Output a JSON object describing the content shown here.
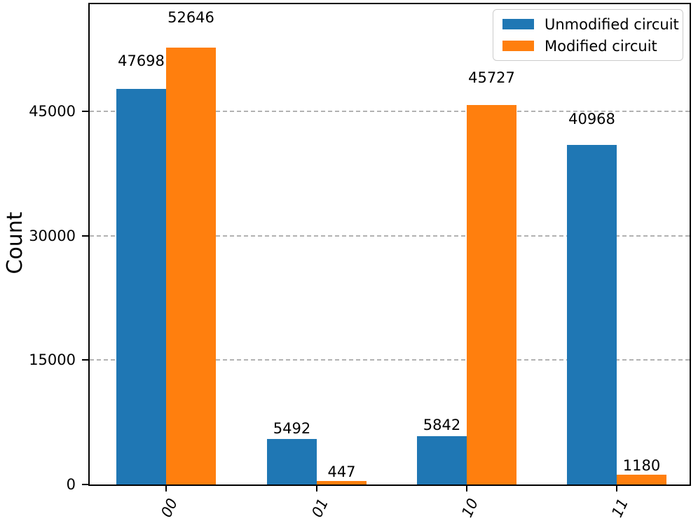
{
  "chart_data": {
    "type": "bar",
    "title": "",
    "categories": [
      "00",
      "01",
      "10",
      "11"
    ],
    "series": [
      {
        "name": "Unmodified circuit",
        "color": "#1f77b4",
        "values": [
          47698,
          5492,
          5842,
          40968
        ]
      },
      {
        "name": "Modified circuit",
        "color": "#ff7f0e",
        "values": [
          52646,
          447,
          45727,
          1180
        ]
      }
    ],
    "bar_value_labels": {
      "Unmodified circuit": [
        47698,
        5492,
        5842,
        40968
      ],
      "Modified circuit": [
        52646,
        447,
        45727,
        1180
      ]
    },
    "xlabel": "",
    "ylabel": "Count",
    "ylim": [
      0,
      57900
    ],
    "yticks": [
      0,
      15000,
      30000,
      45000
    ],
    "xtick_style": "italic, rotated 65deg",
    "grid": "horizontal dashed gray lines at yticks",
    "grid_color": "#b2b2b2",
    "legend_position": "upper right",
    "legend_entries": [
      "Unmodified circuit",
      "Modified circuit"
    ],
    "frame": "full box, black spines"
  }
}
